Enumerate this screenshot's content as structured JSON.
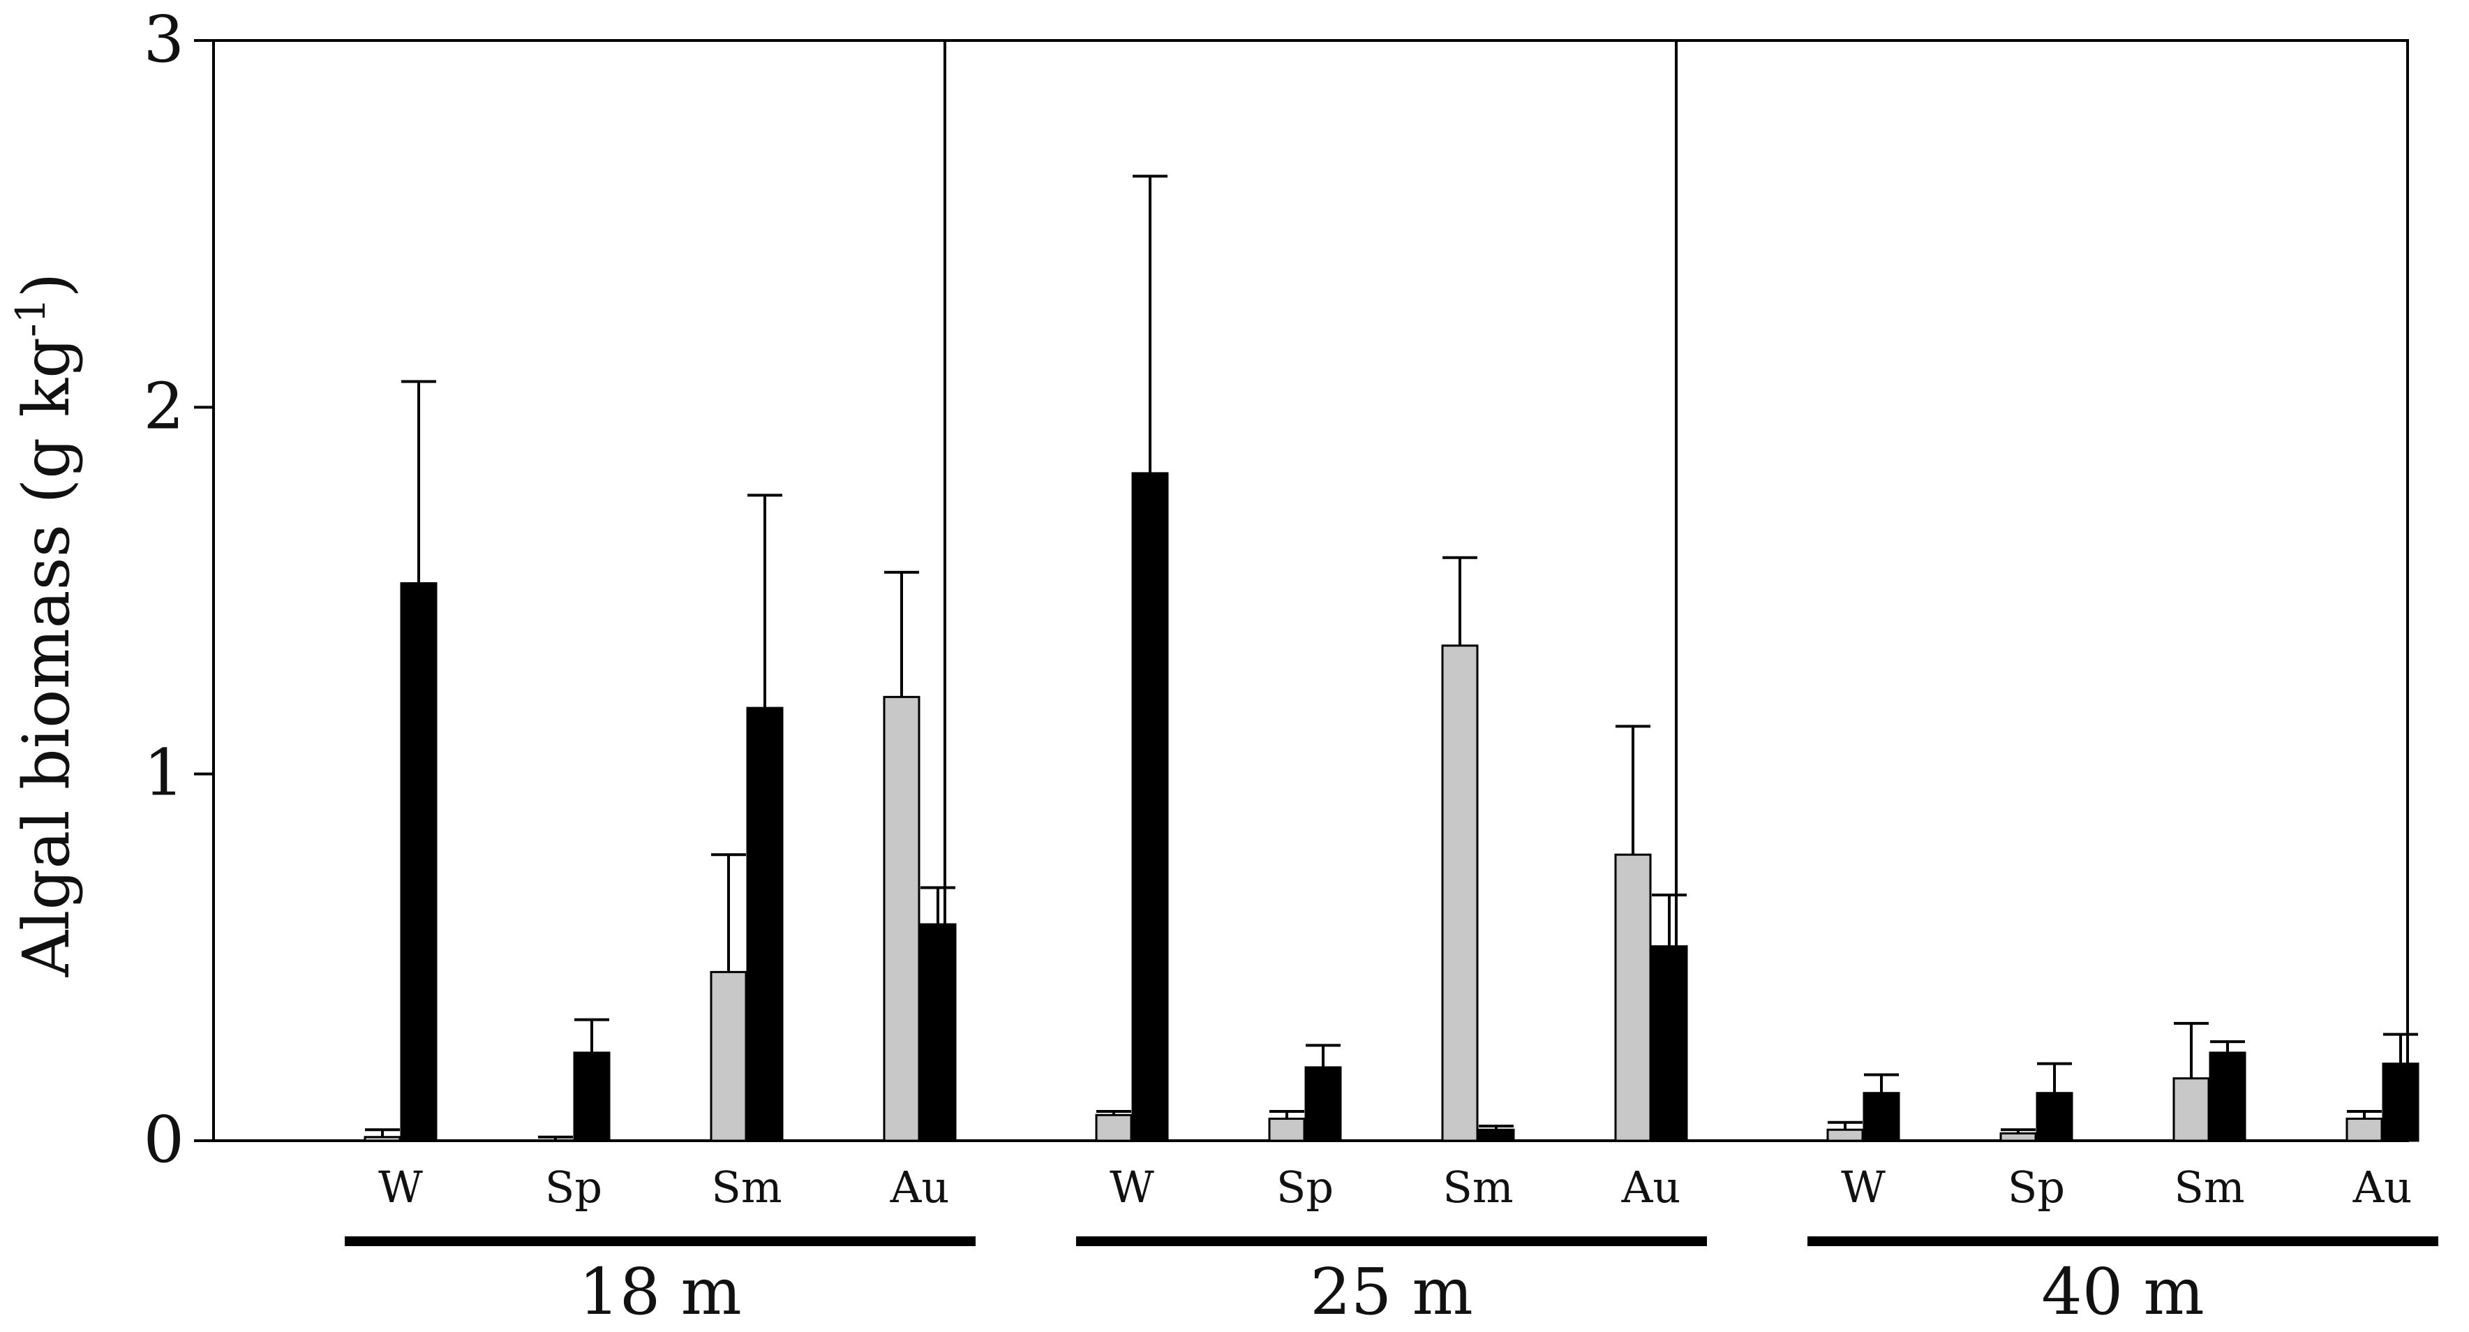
{
  "chart_data": {
    "type": "bar",
    "ylabel": "Algal biomass (g kg",
    "ylabel_sup": "-1",
    "ylabel_end": ")",
    "ylim": [
      0,
      3
    ],
    "yticks": [
      0,
      1,
      2,
      3
    ],
    "ytick_labels": [
      "0",
      "1",
      "2",
      "3"
    ],
    "grid": false,
    "legend": "none",
    "series_colors": [
      "#c8c8c8",
      "#000000"
    ],
    "groups": [
      {
        "label": "18 m",
        "categories": [
          "W",
          "Sp",
          "Sm",
          "Au"
        ],
        "series": [
          {
            "values": [
              0.01,
              0.0,
              0.46,
              1.21
            ],
            "errors": [
              0.02,
              0.01,
              0.32,
              0.34
            ]
          },
          {
            "values": [
              1.52,
              0.24,
              1.18,
              0.59
            ],
            "errors": [
              0.55,
              0.09,
              0.58,
              0.1
            ]
          }
        ]
      },
      {
        "label": "25 m",
        "categories": [
          "W",
          "Sp",
          "Sm",
          "Au"
        ],
        "series": [
          {
            "values": [
              0.07,
              0.06,
              1.35,
              0.78
            ],
            "errors": [
              0.01,
              0.02,
              0.24,
              0.35
            ]
          },
          {
            "values": [
              1.82,
              0.2,
              0.03,
              0.53
            ],
            "errors": [
              0.81,
              0.06,
              0.01,
              0.14
            ]
          }
        ]
      },
      {
        "label": "40 m",
        "categories": [
          "W",
          "Sp",
          "Sm",
          "Au"
        ],
        "series": [
          {
            "values": [
              0.03,
              0.02,
              0.17,
              0.06
            ],
            "errors": [
              0.02,
              0.01,
              0.15,
              0.02
            ]
          },
          {
            "values": [
              0.13,
              0.13,
              0.24,
              0.21
            ],
            "errors": [
              0.05,
              0.08,
              0.03,
              0.08
            ]
          }
        ]
      }
    ]
  }
}
